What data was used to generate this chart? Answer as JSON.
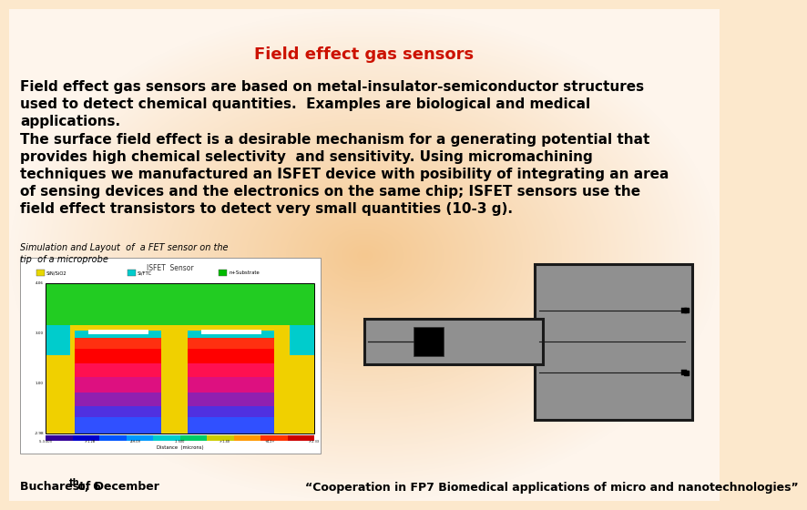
{
  "title": "Field effect gas sensors",
  "title_color": "#cc1100",
  "title_fontsize": 13,
  "paragraph1": "Field effect gas sensors are based on metal-insulator-semiconductor structures\nused to detect chemical quantities.  Examples are biological and medical\napplications.\nThe surface field effect is a desirable mechanism for a generating potential that\nprovides high chemical selectivity  and sensitivity. Using micromachining\ntechniques we manufactured an ISFET device with posibility of integrating an area\nof sensing devices and the electronics on the same chip; ISFET sensors use the\nfield effect transistors to detect very small quantities (10-3 g).",
  "caption": "Simulation and Layout  of  a FET sensor on the\ntip  of a microprobe",
  "footer_left": "Bucharest, 6",
  "footer_left_super": "th",
  "footer_left_rest": " of December",
  "footer_right": "“Cooperation in FP7 Biomedical applications of micro and nanotechnologies”",
  "footer_fontsize": 9,
  "body_fontsize": 11,
  "caption_fontsize": 7,
  "gray_fill": "#909090",
  "gray_stroke": "#1a1a1a",
  "black_fill": "#111111",
  "bg_peach": "#f5c890",
  "bg_light": "#fef5ec"
}
